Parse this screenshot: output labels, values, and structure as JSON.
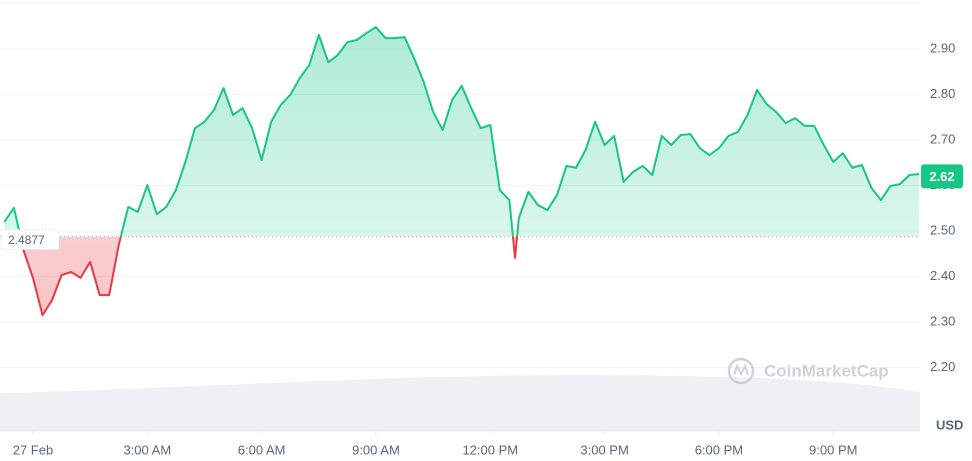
{
  "chart_data": {
    "type": "line",
    "x": [
      -0.75,
      -0.5,
      -0.25,
      0,
      0.25,
      0.5,
      0.75,
      1,
      1.25,
      1.5,
      1.75,
      2,
      2.25,
      2.5,
      2.75,
      3,
      3.25,
      3.5,
      3.75,
      4,
      4.25,
      4.5,
      4.75,
      5,
      5.25,
      5.5,
      5.75,
      6,
      6.25,
      6.5,
      6.75,
      7,
      7.25,
      7.5,
      7.75,
      8,
      8.25,
      8.5,
      8.75,
      9,
      9.25,
      9.5,
      9.75,
      10,
      10.25,
      10.5,
      10.75,
      11,
      11.25,
      11.5,
      11.75,
      12,
      12.25,
      12.5,
      12.65,
      12.75,
      13,
      13.25,
      13.5,
      13.75,
      14,
      14.25,
      14.5,
      14.75,
      15,
      15.25,
      15.5,
      15.75,
      16,
      16.25,
      16.5,
      16.75,
      17,
      17.25,
      17.5,
      17.75,
      18,
      18.25,
      18.5,
      18.75,
      19,
      19.25,
      19.5,
      19.75,
      20,
      20.25,
      20.5,
      20.75,
      21,
      21.25,
      21.5,
      21.75,
      22,
      22.25,
      22.5,
      22.75,
      23,
      23.25
    ],
    "series": [
      {
        "color": "#16c784",
        "values": [
          2.52,
          2.551,
          2.458,
          2.397,
          2.315,
          2.348,
          2.403,
          2.41,
          2.397,
          2.432,
          2.359,
          2.359,
          2.469,
          2.553,
          2.542,
          2.601,
          2.537,
          2.553,
          2.59,
          2.652,
          2.726,
          2.74,
          2.766,
          2.814,
          2.755,
          2.77,
          2.726,
          2.656,
          2.74,
          2.777,
          2.799,
          2.836,
          2.865,
          2.931,
          2.871,
          2.887,
          2.915,
          2.92,
          2.935,
          2.948,
          2.924,
          2.924,
          2.926,
          2.88,
          2.828,
          2.762,
          2.722,
          2.788,
          2.819,
          2.77,
          2.726,
          2.733,
          2.59,
          2.568,
          2.441,
          2.529,
          2.586,
          2.557,
          2.546,
          2.579,
          2.643,
          2.639,
          2.678,
          2.74,
          2.689,
          2.709,
          2.608,
          2.63,
          2.643,
          2.623,
          2.709,
          2.689,
          2.711,
          2.713,
          2.682,
          2.667,
          2.682,
          2.709,
          2.718,
          2.755,
          2.81,
          2.779,
          2.762,
          2.737,
          2.748,
          2.731,
          2.731,
          2.689,
          2.652,
          2.671,
          2.639,
          2.645,
          2.595,
          2.568,
          2.599,
          2.603,
          2.623,
          2.625
        ]
      }
    ],
    "below_color": "#ea3943",
    "baseline": 2.4877,
    "current_price": 2.62,
    "xlim": [
      -0.75,
      23.25
    ],
    "xticks": [
      {
        "value": 0,
        "label": "27 Feb"
      },
      {
        "value": 3,
        "label": "3:00 AM"
      },
      {
        "value": 6,
        "label": "6:00 AM"
      },
      {
        "value": 9,
        "label": "9:00 AM"
      },
      {
        "value": 12,
        "label": "12:00 PM"
      },
      {
        "value": 15,
        "label": "3:00 PM"
      },
      {
        "value": 18,
        "label": "6:00 PM"
      },
      {
        "value": 21,
        "label": "9:00 PM"
      }
    ],
    "ylim": [
      2.06,
      3.0
    ],
    "yticks": [
      {
        "value": 2.2,
        "label": "2.20"
      },
      {
        "value": 2.3,
        "label": "2.30"
      },
      {
        "value": 2.4,
        "label": "2.40"
      },
      {
        "value": 2.5,
        "label": "2.50"
      },
      {
        "value": 2.6,
        "label": "2.60"
      },
      {
        "value": 2.7,
        "label": "2.70"
      },
      {
        "value": 2.8,
        "label": "2.80"
      },
      {
        "value": 2.9,
        "label": "2.90"
      }
    ],
    "grid": true,
    "currency": "USD",
    "watermark": "CoinMarketCap"
  }
}
